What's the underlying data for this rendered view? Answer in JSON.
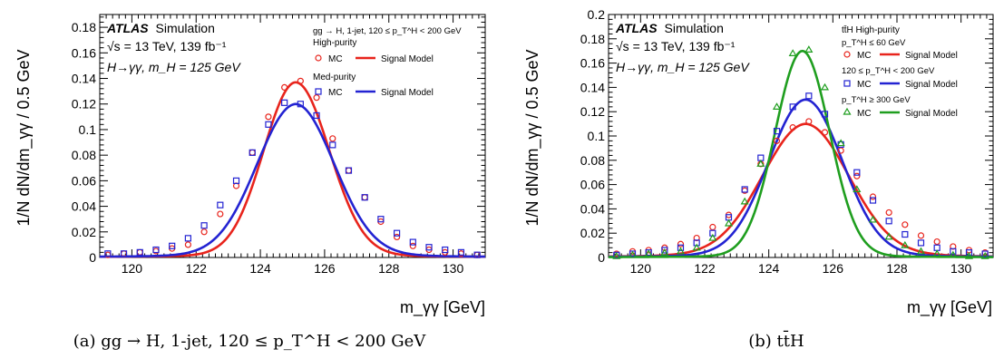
{
  "figure": {
    "panels": [
      {
        "atlas_label": "ATLAS",
        "atlas_suffix": "Simulation",
        "energy_line": "√s = 13 TeV, 139 fb⁻¹",
        "process_line": "H→γγ, m_H = 125 GeV",
        "caption": "(a) gg → H, 1-jet, 120 ≤ p_T^H < 200 GeV",
        "legend_title": "gg → H, 1-jet, 120 ≤ p_T^H < 200 GeV",
        "legend_groups": [
          {
            "header": "High-purity",
            "marker_label": "MC",
            "line_label": "Signal Model",
            "color": "#e8241c",
            "marker": "circle"
          },
          {
            "header": "Med-purity",
            "marker_label": "MC",
            "line_label": "Signal Model",
            "color": "#2323d2",
            "marker": "square"
          }
        ]
      },
      {
        "atlas_label": "ATLAS",
        "atlas_suffix": "Simulation",
        "energy_line": "√s = 13 TeV, 139 fb⁻¹",
        "process_line": "H→γγ, m_H = 125 GeV",
        "caption": "(b) tt̄H",
        "legend_title": "tt̄H High-purity",
        "legend_groups": [
          {
            "header": "p_T^H ≤ 60 GeV",
            "marker_label": "MC",
            "line_label": "Signal Model",
            "color": "#e8241c",
            "marker": "circle"
          },
          {
            "header": "120 ≤ p_T^H < 200 GeV",
            "marker_label": "MC",
            "line_label": "Signal Model",
            "color": "#2323d2",
            "marker": "square"
          },
          {
            "header": "p_T^H ≥ 300 GeV",
            "marker_label": "MC",
            "line_label": "Signal Model",
            "color": "#1f9e1f",
            "marker": "triangle"
          }
        ]
      }
    ]
  },
  "chart_data": [
    {
      "type": "line",
      "xlabel": "m_γγ [GeV]",
      "ylabel": "1/N dN/dm_γγ / 0.5 GeV",
      "xlim": [
        119,
        131
      ],
      "ylim": [
        0,
        0.19
      ],
      "xticks": [
        120,
        122,
        124,
        126,
        128,
        130
      ],
      "yticks": [
        0,
        0.02,
        0.04,
        0.06,
        0.08,
        0.1,
        0.12,
        0.14,
        0.16,
        0.18
      ],
      "ytick_labels": [
        "0",
        "0.02",
        "0.04",
        "0.06",
        "0.08",
        "0.1",
        "0.12",
        "0.14",
        "0.16",
        "0.18"
      ],
      "series": [
        {
          "name": "High-purity",
          "color": "#e8241c",
          "marker": "circle",
          "mc_x": [
            119.25,
            119.75,
            120.25,
            120.75,
            121.25,
            121.75,
            122.25,
            122.75,
            123.25,
            123.75,
            124.25,
            124.75,
            125.25,
            125.75,
            126.25,
            126.75,
            127.25,
            127.75,
            128.25,
            128.75,
            129.25,
            129.75,
            130.25,
            130.75
          ],
          "mc_y": [
            0.002,
            0.003,
            0.004,
            0.005,
            0.007,
            0.01,
            0.02,
            0.034,
            0.056,
            0.082,
            0.11,
            0.133,
            0.138,
            0.125,
            0.093,
            0.068,
            0.047,
            0.028,
            0.016,
            0.009,
            0.006,
            0.004,
            0.003,
            0.002
          ],
          "model": {
            "mu": 125.1,
            "sigma_left": 1.0,
            "sigma_right": 1.05,
            "peak": 0.137,
            "tail": 0.0025
          }
        },
        {
          "name": "Med-purity",
          "color": "#2323d2",
          "marker": "square",
          "mc_x": [
            119.25,
            119.75,
            120.25,
            120.75,
            121.25,
            121.75,
            122.25,
            122.75,
            123.25,
            123.75,
            124.25,
            124.75,
            125.25,
            125.75,
            126.25,
            126.75,
            127.25,
            127.75,
            128.25,
            128.75,
            129.25,
            129.75,
            130.25,
            130.75
          ],
          "mc_y": [
            0.003,
            0.003,
            0.004,
            0.006,
            0.009,
            0.015,
            0.025,
            0.041,
            0.06,
            0.082,
            0.104,
            0.121,
            0.12,
            0.111,
            0.088,
            0.068,
            0.047,
            0.03,
            0.019,
            0.012,
            0.008,
            0.006,
            0.004,
            0.002
          ],
          "model": {
            "mu": 125.1,
            "sigma_left": 1.2,
            "sigma_right": 1.2,
            "peak": 0.12,
            "tail": 0.003
          }
        }
      ]
    },
    {
      "type": "line",
      "xlabel": "m_γγ [GeV]",
      "ylabel": "1/N dN/dm_γγ / 0.5 GeV",
      "xlim": [
        119,
        131
      ],
      "ylim": [
        0,
        0.2
      ],
      "xticks": [
        120,
        122,
        124,
        126,
        128,
        130
      ],
      "yticks": [
        0,
        0.02,
        0.04,
        0.06,
        0.08,
        0.1,
        0.12,
        0.14,
        0.16,
        0.18,
        0.2
      ],
      "ytick_labels": [
        "0",
        "0.02",
        "0.04",
        "0.06",
        "0.08",
        "0.1",
        "0.12",
        "0.14",
        "0.16",
        "0.18",
        "0.2"
      ],
      "series": [
        {
          "name": "p_T^H ≤ 60 GeV",
          "color": "#e8241c",
          "marker": "circle",
          "mc_x": [
            119.25,
            119.75,
            120.25,
            120.75,
            121.25,
            121.75,
            122.25,
            122.75,
            123.25,
            123.75,
            124.25,
            124.75,
            125.25,
            125.75,
            126.25,
            126.75,
            127.25,
            127.75,
            128.25,
            128.75,
            129.25,
            129.75,
            130.25,
            130.75
          ],
          "mc_y": [
            0.003,
            0.005,
            0.006,
            0.008,
            0.011,
            0.016,
            0.025,
            0.035,
            0.055,
            0.077,
            0.096,
            0.107,
            0.112,
            0.103,
            0.088,
            0.067,
            0.05,
            0.037,
            0.027,
            0.018,
            0.013,
            0.009,
            0.006,
            0.004
          ],
          "model": {
            "mu": 125.15,
            "sigma_left": 1.35,
            "sigma_right": 1.35,
            "peak": 0.11,
            "tail": 0.004
          }
        },
        {
          "name": "120 ≤ p_T^H < 200 GeV",
          "color": "#2323d2",
          "marker": "square",
          "mc_x": [
            119.25,
            119.75,
            120.25,
            120.75,
            121.25,
            121.75,
            122.25,
            122.75,
            123.25,
            123.75,
            124.25,
            124.75,
            125.25,
            125.75,
            126.25,
            126.75,
            127.25,
            127.75,
            128.25,
            128.75,
            129.25,
            129.75,
            130.25,
            130.75
          ],
          "mc_y": [
            0.002,
            0.003,
            0.004,
            0.006,
            0.008,
            0.012,
            0.02,
            0.033,
            0.056,
            0.082,
            0.104,
            0.124,
            0.133,
            0.118,
            0.093,
            0.07,
            0.047,
            0.03,
            0.019,
            0.012,
            0.008,
            0.005,
            0.004,
            0.003
          ],
          "model": {
            "mu": 125.15,
            "sigma_left": 1.15,
            "sigma_right": 1.15,
            "peak": 0.13,
            "tail": 0.003
          }
        },
        {
          "name": "p_T^H ≥ 300 GeV",
          "color": "#1f9e1f",
          "marker": "triangle",
          "mc_x": [
            119.25,
            119.75,
            120.25,
            120.75,
            121.25,
            121.75,
            122.25,
            122.75,
            123.25,
            123.75,
            124.25,
            124.75,
            125.25,
            125.75,
            126.25,
            126.75,
            127.25,
            127.75,
            128.25,
            128.75,
            129.25,
            129.75,
            130.25,
            130.75
          ],
          "mc_y": [
            0.001,
            0.002,
            0.003,
            0.004,
            0.005,
            0.008,
            0.016,
            0.028,
            0.046,
            0.077,
            0.124,
            0.168,
            0.171,
            0.14,
            0.094,
            0.056,
            0.031,
            0.017,
            0.01,
            0.005,
            0.003,
            0.002,
            0.001,
            0.001
          ],
          "model": {
            "mu": 125.05,
            "sigma_left": 0.85,
            "sigma_right": 0.85,
            "peak": 0.17,
            "tail": 0.0015
          }
        }
      ]
    }
  ]
}
